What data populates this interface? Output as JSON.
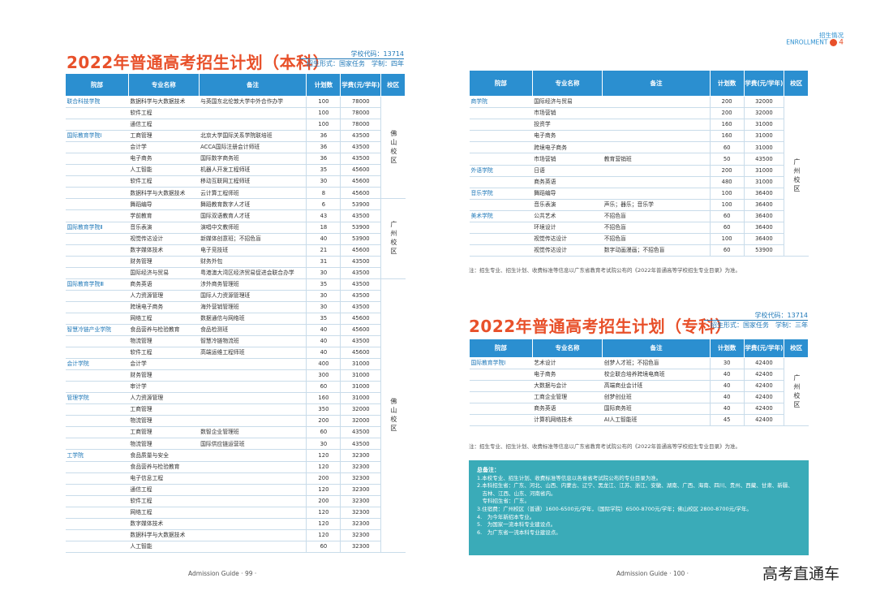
{
  "header": {
    "section": "招生情况",
    "section_en": "ENROLLMENT",
    "page": "4"
  },
  "left": {
    "title": "2022年普通高考招生计划（本科）",
    "code": "学校代码：13714",
    "form": "招生形式：国家任务　学制：四年",
    "table": {
      "header": [
        "院部",
        "专业名称",
        "备注",
        "计划数",
        "学费(元/学年)",
        "校区"
      ],
      "rows": [
        [
          "联合科技学院",
          "数据科学与大数据技术",
          "与英国东北伦敦大学中外合作办学",
          100,
          78000,
          "佛山校区"
        ],
        [
          null,
          "软件工程",
          null,
          100,
          78000,
          null
        ],
        [
          null,
          "通信工程",
          null,
          100,
          78000,
          null
        ],
        [
          "国际教育学院Ⅰ",
          "工商管理",
          "北京大学国际关系学院联培班",
          36,
          43500,
          null
        ],
        [
          null,
          "会计学",
          "ACCA国际注册会计师班",
          36,
          43500,
          null
        ],
        [
          null,
          "电子商务",
          "国际数字商务班",
          36,
          43500,
          null
        ],
        [
          null,
          "人工智能",
          "机器人开发工程师班",
          35,
          45600,
          null
        ],
        [
          null,
          "软件工程",
          "移动互联网工程师班",
          30,
          45600,
          null
        ],
        [
          null,
          "数据科学与大数据技术",
          "云计算工程师班",
          8,
          45600,
          null
        ],
        [
          null,
          "舞蹈编导",
          "舞蹈教育数字人才班",
          6,
          53900,
          "广州校区"
        ],
        [
          null,
          "学前教育",
          "国际双语教育人才班",
          43,
          43500,
          null
        ],
        [
          "国际教育学院Ⅱ",
          "音乐表演",
          "演唱中文教师班",
          18,
          53900,
          null
        ],
        [
          null,
          "视觉传达设计",
          "新媒体创意班；不招色盲",
          40,
          53900,
          null
        ],
        [
          null,
          "数字媒体技术",
          "电子竞技班",
          21,
          45600,
          null
        ],
        [
          null,
          "财务管理",
          "财务外包",
          31,
          43500,
          null
        ],
        [
          null,
          "国际经济与贸易",
          "粤港澳大湾区经济贸易促进会联合办学",
          30,
          43500,
          null
        ],
        [
          "国际教育学院Ⅲ",
          "商务英语",
          "涉外商务管理班",
          35,
          43500,
          "佛山校区"
        ],
        [
          null,
          "人力资源管理",
          "国际人力资源管理班",
          30,
          43500,
          null
        ],
        [
          null,
          "跨境电子商务",
          "海外营销管理班",
          30,
          43500,
          null
        ],
        [
          null,
          "网络工程",
          "数据通信与网络班",
          35,
          45600,
          null
        ],
        [
          "智慧冷链产业学院",
          "食品营养与检验教育",
          "食品检测班",
          40,
          45600,
          null
        ],
        [
          null,
          "物流管理",
          "智慧冷链物流班",
          40,
          43500,
          null
        ],
        [
          null,
          "软件工程",
          "高端运维工程师班",
          40,
          45600,
          null
        ],
        [
          "会计学院",
          "会计学",
          null,
          400,
          31000,
          null
        ],
        [
          null,
          "财务管理",
          null,
          300,
          31000,
          null
        ],
        [
          null,
          "审计学",
          null,
          60,
          31000,
          null
        ],
        [
          "管理学院",
          "人力资源管理",
          null,
          160,
          31000,
          null
        ],
        [
          null,
          "工商管理",
          null,
          350,
          32000,
          null
        ],
        [
          null,
          "物流管理",
          null,
          200,
          32000,
          null
        ],
        [
          null,
          "工商管理",
          "数智企业管理班",
          60,
          43500,
          null
        ],
        [
          null,
          "物流管理",
          "国际供应链运营班",
          30,
          43500,
          null
        ],
        [
          "工学院",
          "食品质量与安全",
          null,
          120,
          32300,
          null
        ],
        [
          null,
          "食品营养与检验教育",
          null,
          120,
          32300,
          null
        ],
        [
          null,
          "电子信息工程",
          null,
          200,
          32300,
          null
        ],
        [
          null,
          "通信工程",
          null,
          120,
          32300,
          null
        ],
        [
          null,
          "软件工程",
          null,
          200,
          32300,
          null
        ],
        [
          null,
          "网络工程",
          null,
          120,
          32300,
          null
        ],
        [
          null,
          "数字媒体技术",
          null,
          120,
          32300,
          null
        ],
        [
          null,
          "数据科学与大数据技术",
          null,
          120,
          32300,
          null
        ],
        [
          null,
          "人工智能",
          null,
          60,
          32300,
          null
        ]
      ]
    },
    "footer": "Admission Guide · 99 ·"
  },
  "right_top": {
    "table": {
      "header": [
        "院部",
        "专业名称",
        "备注",
        "计划数",
        "学费(元/学年)",
        "校区"
      ],
      "rows": [
        [
          "商学院",
          "国际经济与贸易",
          null,
          200,
          32000,
          "广州校区"
        ],
        [
          null,
          "市场营销",
          null,
          200,
          32000,
          null
        ],
        [
          null,
          "投资学",
          null,
          160,
          31000,
          null
        ],
        [
          null,
          "电子商务",
          null,
          160,
          31000,
          null
        ],
        [
          null,
          "跨境电子商务",
          null,
          60,
          31000,
          null
        ],
        [
          null,
          "市场营销",
          "教育营销班",
          50,
          43500,
          null
        ],
        [
          "外语学院",
          "日语",
          null,
          200,
          31000,
          null
        ],
        [
          null,
          "商务英语",
          null,
          480,
          31000,
          null
        ],
        [
          "音乐学院",
          "舞蹈编导",
          null,
          100,
          36400,
          null
        ],
        [
          null,
          "音乐表演",
          "声乐；器乐；音乐学",
          100,
          36400,
          null
        ],
        [
          "美术学院",
          "公共艺术",
          "不招色盲",
          60,
          36400,
          null
        ],
        [
          null,
          "环境设计",
          "不招色盲",
          60,
          36400,
          null
        ],
        [
          null,
          "视觉传达设计",
          "不招色盲",
          100,
          36400,
          null
        ],
        [
          null,
          "视觉传达设计",
          "数字动画漫画；不招色盲",
          60,
          53900,
          null
        ]
      ]
    },
    "note": "注：招生专业、招生计划、收费标准等信息以广东省教育考试院公布的《2022年普通高等学校招生专业目录》为准。"
  },
  "right_bottom": {
    "title": "2022年普通高考招生计划（专科）",
    "code": "学校代码：13714",
    "form": "招生形式：国家任务　学制：三年",
    "table": {
      "header": [
        "院部",
        "专业名称",
        "备注",
        "计划数",
        "学费(元/学年)",
        "校区"
      ],
      "rows": [
        [
          "国际教育学院Ⅰ",
          "艺术设计",
          "创梦人才班；不招色盲",
          30,
          42400,
          "广州校区"
        ],
        [
          null,
          "电子商务",
          "校企联合培养跨境电商班",
          40,
          42400,
          null
        ],
        [
          null,
          "大数据与会计",
          "高端商业会计班",
          40,
          42400,
          null
        ],
        [
          null,
          "工商企业管理",
          "创梦创业班",
          40,
          42400,
          null
        ],
        [
          null,
          "商务英语",
          "国际商务班",
          40,
          42400,
          null
        ],
        [
          null,
          "计算机网络技术",
          "AI人工智能班",
          45,
          42400,
          null
        ]
      ]
    },
    "note": "注：招生专业、招生计划、收费标准等信息以广东省教育考试院公布的《2022年普通高等学校招生专业目录》为准。",
    "summary": {
      "title": "总备注：",
      "lines": [
        "1.本校专业、招生计划、收费标准等信息以各省省考试院公布的专业目录为准。",
        "2.本科招生省：广东、河北、山西、内蒙古、辽宁、黑龙江、江苏、浙江、安徽、湖南、广西、海南、四川、贵州、西藏、甘肃、新疆、",
        "　吉林、江西、山东、河南省内。",
        "　专科招生省：广东。",
        "3.住宿费：广州校区（普通）1600-6500元/学年，（国际学院）6500-8700元/学年；佛山校区 2800-8700元/学年。",
        "4.　为今年新招本专业。",
        "5.　为国家一流本科专业建设点。",
        "6.　为广东省一流本科专业建设点。"
      ]
    },
    "footer": "Admission Guide · 100 ·"
  },
  "watermark": "高考直通车"
}
